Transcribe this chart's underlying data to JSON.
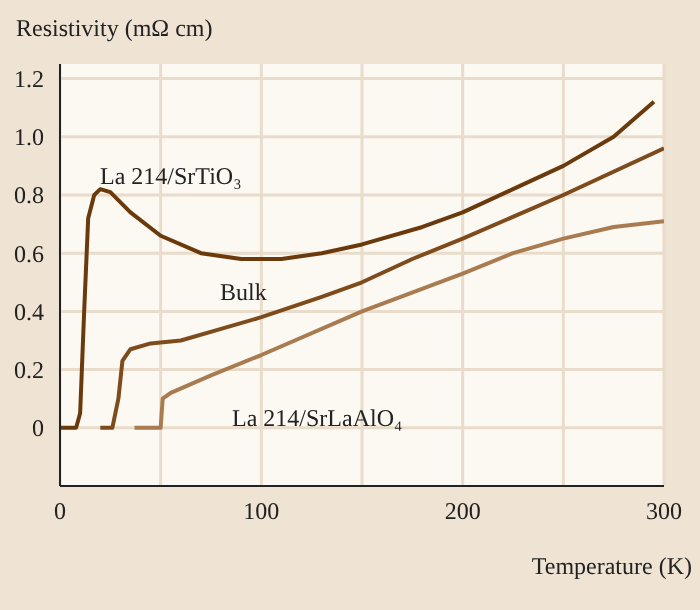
{
  "chart_data": {
    "type": "line",
    "xlabel": "Temperature (K)",
    "ylabel": "Resistivity (mΩ cm)",
    "xlim": [
      0,
      300
    ],
    "xticks": [
      0,
      {
        "value": 50,
        "label": null
      },
      100,
      {
        "value": 150,
        "label": null
      },
      200,
      {
        "value": 250,
        "label": null
      },
      300
    ],
    "ylim": [
      -0.2,
      1.25
    ],
    "yticks": [
      0,
      0.2,
      0.4,
      0.6,
      0.8,
      {
        "value": 1,
        "label": "1.0"
      },
      1.2
    ],
    "grid": true,
    "marker": "none",
    "line_style": "solid",
    "series": [
      {
        "color": "#6b3a0c",
        "x": [
          0,
          8,
          10,
          12,
          14,
          17,
          20,
          25,
          35,
          50,
          70,
          90,
          110,
          130,
          150,
          180,
          200,
          225,
          250,
          275,
          295
        ],
        "values": [
          0,
          0,
          0.05,
          0.4,
          0.72,
          0.8,
          0.82,
          0.81,
          0.74,
          0.66,
          0.6,
          0.58,
          0.58,
          0.6,
          0.63,
          0.69,
          0.74,
          0.82,
          0.9,
          1.0,
          1.12
        ]
      },
      {
        "color": "#7e4c1c",
        "x": [
          20,
          26,
          29,
          31,
          35,
          45,
          60,
          80,
          100,
          130,
          150,
          175,
          200,
          250,
          300
        ],
        "values": [
          0,
          0,
          0.1,
          0.23,
          0.27,
          0.29,
          0.3,
          0.34,
          0.38,
          0.45,
          0.5,
          0.58,
          0.65,
          0.8,
          0.96
        ]
      },
      {
        "color": "#a87c50",
        "x": [
          37,
          50,
          51,
          55,
          75,
          100,
          150,
          200,
          225,
          250,
          275,
          300
        ],
        "values": [
          0,
          0,
          0.1,
          0.12,
          0.18,
          0.25,
          0.4,
          0.53,
          0.6,
          0.65,
          0.69,
          0.71
        ]
      }
    ],
    "annotations": [
      "La 214/SrTiO₃",
      "Bulk",
      "La 214/SrLaAlO₄"
    ]
  }
}
